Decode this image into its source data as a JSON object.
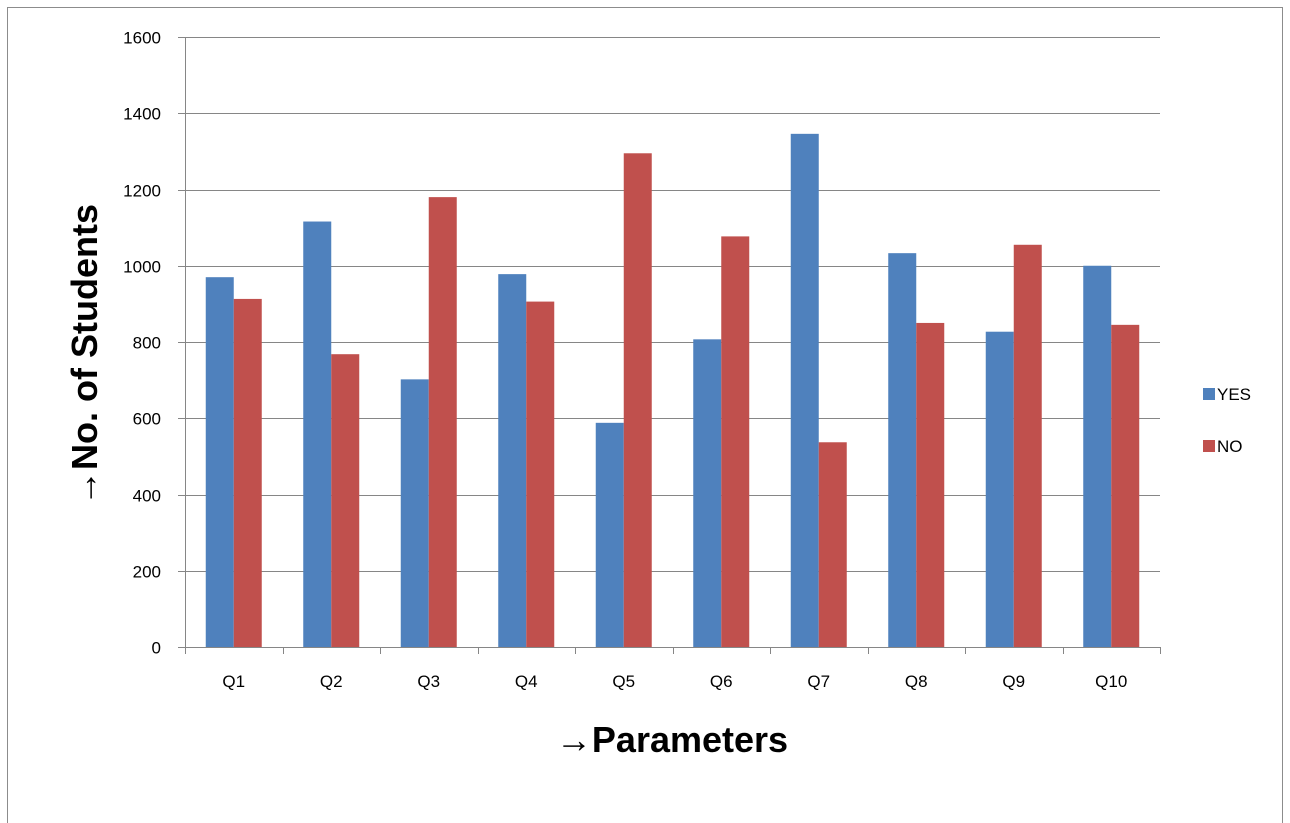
{
  "chart_data": {
    "type": "bar",
    "title": "",
    "xlabel": "→Parameters",
    "ylabel": "→No.  of  Students",
    "categories": [
      "Q1",
      "Q2",
      "Q3",
      "Q4",
      "Q5",
      "Q6",
      "Q7",
      "Q8",
      "Q9",
      "Q10"
    ],
    "series": [
      {
        "name": "YES",
        "color": "#4f81bd",
        "values": [
          970,
          1116,
          702,
          978,
          588,
          807,
          1346,
          1033,
          827,
          1000
        ]
      },
      {
        "name": "NO",
        "color": "#c0504d",
        "values": [
          913,
          768,
          1180,
          906,
          1295,
          1077,
          537,
          850,
          1055,
          845
        ]
      }
    ],
    "ylim": [
      0,
      1600
    ],
    "yticks": [
      0,
      200,
      400,
      600,
      800,
      1000,
      1200,
      1400,
      1600
    ],
    "grid": true,
    "legend_position": "right"
  }
}
